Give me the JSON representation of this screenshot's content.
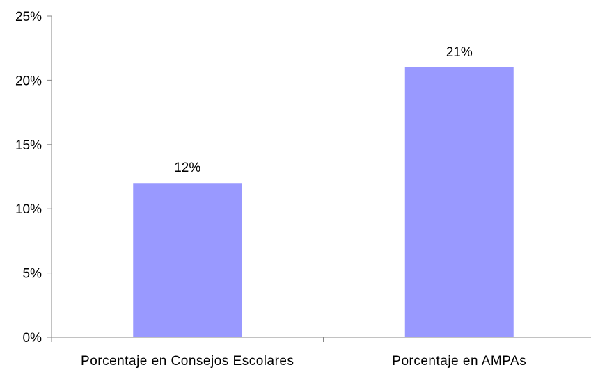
{
  "chart_data": {
    "type": "bar",
    "title": "",
    "xlabel": "",
    "ylabel": "",
    "categories": [
      "Porcentaje en Consejos Escolares",
      "Porcentaje en AMPAs"
    ],
    "values": [
      12,
      21
    ],
    "data_labels": [
      "12%",
      "21%"
    ],
    "ylim": [
      0,
      25
    ],
    "y_ticks": [
      0,
      5,
      10,
      15,
      20,
      25
    ],
    "y_tick_labels": [
      "0%",
      "5%",
      "10%",
      "15%",
      "20%",
      "25%"
    ],
    "grid": false,
    "legend": "none",
    "bar_color": "#9999ff",
    "axis_color": "#868686"
  }
}
